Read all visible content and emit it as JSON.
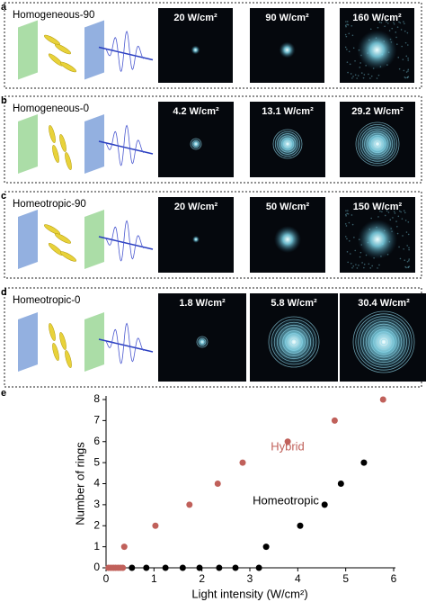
{
  "panels": [
    {
      "letter": "a",
      "title": "Homogeneous-90",
      "images": [
        {
          "label": "20 W/cm²"
        },
        {
          "label": "90 W/cm²"
        },
        {
          "label": "160 W/cm²"
        }
      ]
    },
    {
      "letter": "b",
      "title": "Homogeneous-0",
      "images": [
        {
          "label": "4.2 W/cm²"
        },
        {
          "label": "13.1 W/cm²"
        },
        {
          "label": "29.2 W/cm²"
        }
      ]
    },
    {
      "letter": "c",
      "title": "Homeotropic-90",
      "images": [
        {
          "label": "20 W/cm²"
        },
        {
          "label": "50 W/cm²"
        },
        {
          "label": "150 W/cm²"
        }
      ]
    },
    {
      "letter": "d",
      "title": "Homeotropic-0",
      "images": [
        {
          "label": "1.8 W/cm²"
        },
        {
          "label": "5.8 W/cm²"
        },
        {
          "label": "30.4 W/cm²"
        }
      ]
    }
  ],
  "chart_data": {
    "type": "scatter",
    "panel_label": "e",
    "xlabel": "Light intensity (W/cm²)",
    "ylabel": "Number of rings",
    "xlim": [
      0,
      6
    ],
    "xticks": [
      0,
      1,
      2,
      3,
      4,
      5,
      6
    ],
    "ylim": [
      0,
      8
    ],
    "yticks": [
      0,
      1,
      2,
      3,
      4,
      5,
      6,
      7,
      8
    ],
    "series": [
      {
        "name": "Hybrid",
        "color": "#c0605a",
        "x": [
          0.05,
          0.1,
          0.15,
          0.2,
          0.25,
          0.3,
          0.35,
          0.38,
          1.03,
          1.74,
          2.33,
          2.85,
          3.79,
          4.77,
          5.78
        ],
        "values": [
          0,
          0,
          0,
          0,
          0,
          0,
          0,
          1,
          2,
          3,
          4,
          5,
          6,
          7,
          8
        ]
      },
      {
        "name": "Homeotropic",
        "color": "#000000",
        "x": [
          0.54,
          0.84,
          1.24,
          1.6,
          1.95,
          2.36,
          2.7,
          3.19,
          3.34,
          4.05,
          4.56,
          4.9,
          5.38
        ],
        "values": [
          0,
          0,
          0,
          0,
          0,
          0,
          0,
          0,
          1,
          2,
          3,
          4,
          5
        ]
      }
    ]
  }
}
